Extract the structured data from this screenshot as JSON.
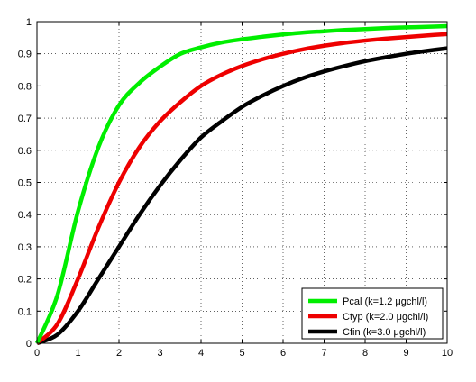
{
  "chart_data": {
    "type": "line",
    "title": "",
    "xlabel": "",
    "ylabel": "",
    "xlim": [
      0,
      10
    ],
    "ylim": [
      0,
      1
    ],
    "x_ticks": [
      0,
      1,
      2,
      3,
      4,
      5,
      6,
      7,
      8,
      9,
      10
    ],
    "y_ticks": [
      0,
      0.1,
      0.2,
      0.3,
      0.4,
      0.5,
      0.6,
      0.7,
      0.8,
      0.9,
      1
    ],
    "x_tick_labels": [
      "0",
      "1",
      "2",
      "3",
      "4",
      "5",
      "6",
      "7",
      "8",
      "9",
      "10"
    ],
    "y_tick_labels": [
      "0",
      "0.1",
      "0.2",
      "0.3",
      "0.4",
      "0.5",
      "0.6",
      "0.7",
      "0.8",
      "0.9",
      "1"
    ],
    "grid": true,
    "legend_position": "bottom-right",
    "x": [
      0,
      0.5,
      1,
      1.5,
      2,
      2.5,
      3,
      3.5,
      4,
      4.5,
      5,
      5.5,
      6,
      6.5,
      7,
      7.5,
      8,
      8.5,
      9,
      9.5,
      10
    ],
    "series": [
      {
        "name": "Pcal (k=1.2 μgchl/l)",
        "color": "#00ee00",
        "values": [
          0,
          0.15,
          0.41,
          0.61,
          0.74,
          0.81,
          0.86,
          0.9,
          0.92,
          0.935,
          0.945,
          0.953,
          0.96,
          0.966,
          0.97,
          0.974,
          0.977,
          0.98,
          0.982,
          0.984,
          0.986
        ]
      },
      {
        "name": "Ctyp (k=2.0 μgchl/l)",
        "color": "#ee0000",
        "values": [
          0,
          0.06,
          0.2,
          0.36,
          0.5,
          0.61,
          0.69,
          0.75,
          0.8,
          0.835,
          0.862,
          0.883,
          0.9,
          0.914,
          0.925,
          0.934,
          0.941,
          0.947,
          0.952,
          0.957,
          0.961
        ]
      },
      {
        "name": "Cfin (k=3.0 μgchl/l)",
        "color": "#000000",
        "values": [
          0,
          0.027,
          0.1,
          0.2,
          0.3,
          0.4,
          0.49,
          0.57,
          0.64,
          0.69,
          0.735,
          0.77,
          0.8,
          0.825,
          0.845,
          0.862,
          0.877,
          0.889,
          0.9,
          0.909,
          0.917
        ]
      }
    ]
  }
}
